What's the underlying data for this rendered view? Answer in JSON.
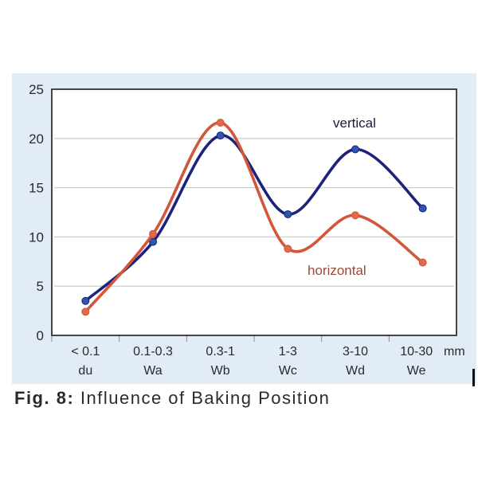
{
  "chart_data": {
    "type": "line",
    "title": "",
    "xlabel": "",
    "ylabel": "",
    "x_unit_label": "mm",
    "categories": [
      {
        "range": "< 0.1",
        "code": "du"
      },
      {
        "range": "0.1-0.3",
        "code": "Wa"
      },
      {
        "range": "0.3-1",
        "code": "Wb"
      },
      {
        "range": "1-3",
        "code": "Wc"
      },
      {
        "range": "3-10",
        "code": "Wd"
      },
      {
        "range": "10-30",
        "code": "We"
      }
    ],
    "ylim": [
      0,
      25
    ],
    "yticks": [
      0,
      5,
      10,
      15,
      20,
      25
    ],
    "grid": "horizontal",
    "smooth": true,
    "series": [
      {
        "name": "vertical",
        "color": "#1c237a",
        "marker_color": "#2b55b0",
        "values": [
          3.5,
          9.5,
          20.3,
          12.3,
          18.9,
          12.9
        ]
      },
      {
        "name": "horizontal",
        "color": "#d2563a",
        "marker_color": "#e06a4a",
        "values": [
          2.4,
          10.3,
          21.6,
          8.8,
          12.2,
          7.4
        ]
      }
    ],
    "annotations": [
      {
        "text": "vertical",
        "series": "vertical",
        "placement": "above Wd peak",
        "color": "#1c1c3a"
      },
      {
        "text": "horizontal",
        "series": "horizontal",
        "placement": "below Wc-Wd",
        "color": "#9a4a3a"
      }
    ],
    "legend": "inline-annotations",
    "background_color": "#e2ecf7",
    "plot_background": "#ffffff"
  },
  "caption": {
    "prefix": "Fig. 8:",
    "text": " Influence of Baking Position"
  }
}
